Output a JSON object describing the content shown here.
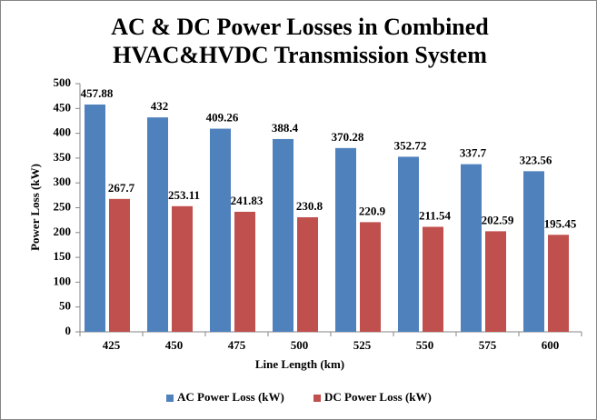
{
  "chart_data": {
    "type": "bar",
    "title": [
      "AC & DC Power Losses in Combined",
      "HVAC&HVDC Transmission System"
    ],
    "x_label": "Line Length (km)",
    "y_label": "Power Loss (kW)",
    "categories": [
      "425",
      "450",
      "475",
      "500",
      "525",
      "550",
      "575",
      "600"
    ],
    "series": [
      {
        "name": "AC Power Loss (kW)",
        "color": "#4f81bd",
        "values": [
          457.88,
          432,
          409.26,
          388.4,
          370.28,
          352.72,
          337.7,
          323.56
        ]
      },
      {
        "name": "DC Power Loss (kW)",
        "color": "#c0504d",
        "values": [
          267.7,
          253.11,
          241.83,
          230.8,
          220.9,
          211.54,
          202.59,
          195.45
        ]
      }
    ],
    "ylim": [
      0,
      500
    ],
    "yticks": [
      0,
      50,
      100,
      150,
      200,
      250,
      300,
      350,
      400,
      450,
      500
    ],
    "grid": false,
    "legend": "bottom"
  }
}
